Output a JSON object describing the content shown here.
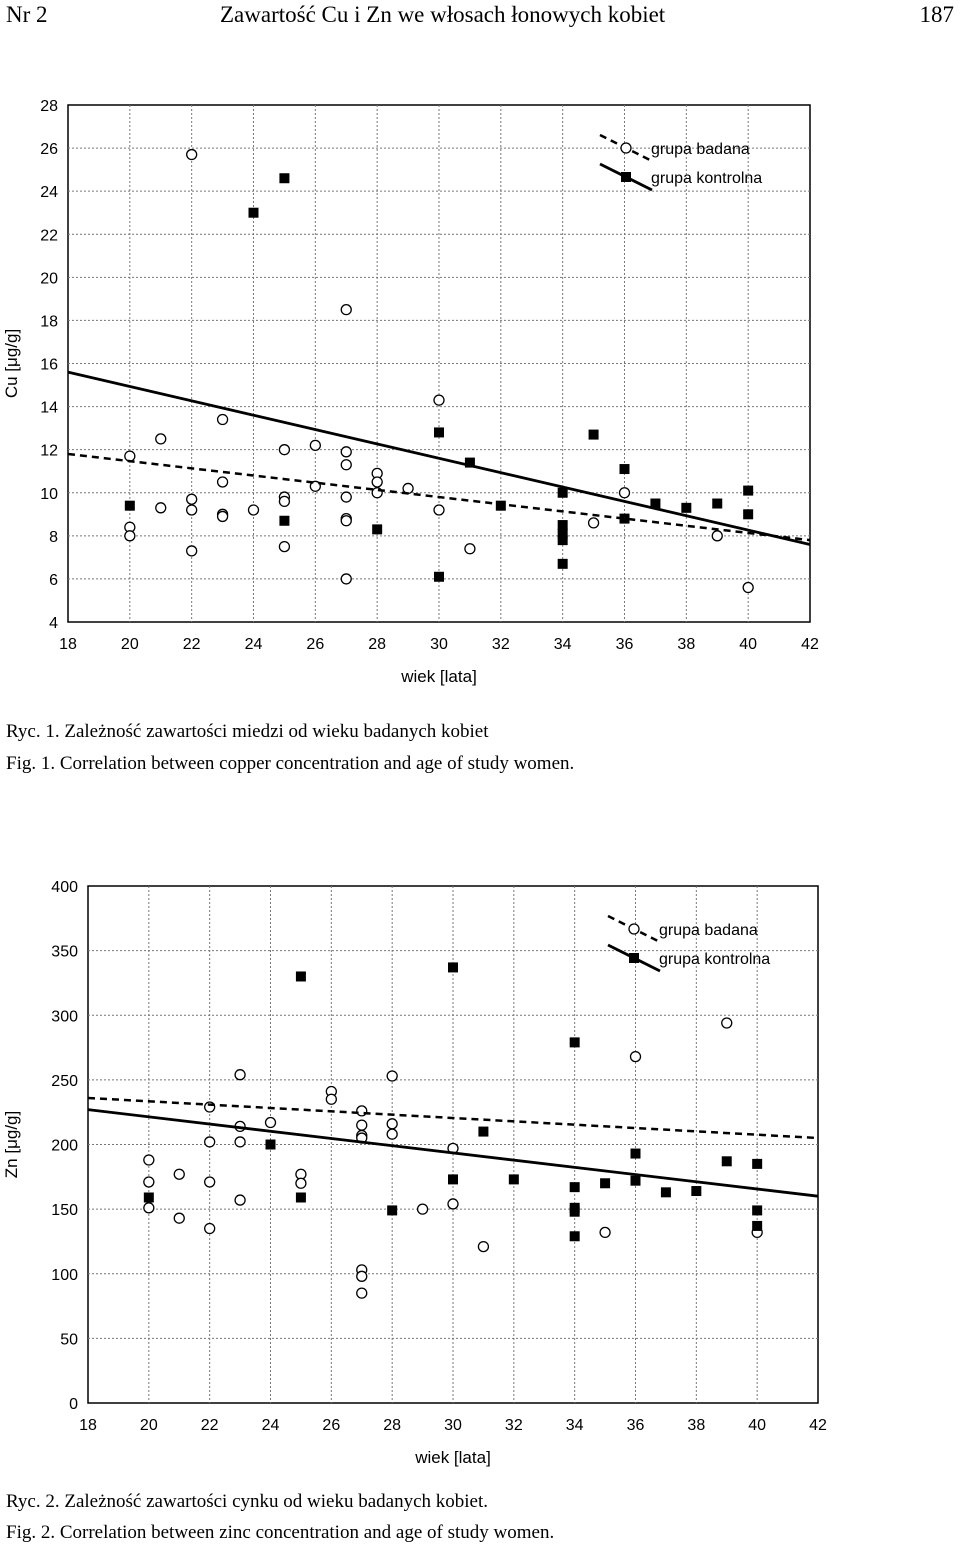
{
  "header": {
    "left": "Nr 2",
    "center": "Zawartość Cu i Zn we włosach łonowych kobiet",
    "right": "187"
  },
  "captions": {
    "fig1_pl": "Ryc. 1. Zależność zawartości miedzi od wieku badanych kobiet",
    "fig1_en": "Fig. 1. Correlation between copper concentration and age of study women.",
    "fig2_pl": "Ryc. 2. Zależność zawartości cynku od wieku badanych kobiet.",
    "fig2_en": "Fig. 2. Correlation between zinc concentration and age of study women."
  },
  "chart_data": [
    {
      "type": "scatter",
      "xlabel": "wiek [lata]",
      "ylabel": "Cu [μg/g]",
      "xlim": [
        18,
        42
      ],
      "ylim": [
        4,
        28
      ],
      "xticks": [
        18,
        20,
        22,
        24,
        26,
        28,
        30,
        32,
        34,
        36,
        38,
        40,
        42
      ],
      "yticks": [
        4,
        6,
        8,
        10,
        12,
        14,
        16,
        18,
        20,
        22,
        24,
        26,
        28
      ],
      "grid": true,
      "legend_position": "top-right",
      "series": [
        {
          "name": "grupa badana",
          "marker": "open-circle",
          "line_style": "dashed",
          "trend": [
            [
              18,
              11.8
            ],
            [
              42,
              7.8
            ]
          ],
          "points": [
            [
              20,
              11.7
            ],
            [
              20,
              8.4
            ],
            [
              20,
              8.0
            ],
            [
              21,
              12.5
            ],
            [
              21,
              9.3
            ],
            [
              22,
              25.7
            ],
            [
              22,
              9.7
            ],
            [
              22,
              9.2
            ],
            [
              22,
              7.3
            ],
            [
              23,
              13.4
            ],
            [
              23,
              10.5
            ],
            [
              23,
              9.0
            ],
            [
              23,
              8.9
            ],
            [
              24,
              9.2
            ],
            [
              25,
              12.0
            ],
            [
              25,
              9.8
            ],
            [
              25,
              9.6
            ],
            [
              25,
              7.5
            ],
            [
              26,
              12.2
            ],
            [
              26,
              10.3
            ],
            [
              27,
              18.5
            ],
            [
              27,
              11.9
            ],
            [
              27,
              11.3
            ],
            [
              27,
              9.8
            ],
            [
              27,
              8.8
            ],
            [
              27,
              8.7
            ],
            [
              27,
              6.0
            ],
            [
              28,
              10.9
            ],
            [
              28,
              10.5
            ],
            [
              28,
              10.0
            ],
            [
              29,
              10.2
            ],
            [
              30,
              14.3
            ],
            [
              30,
              9.2
            ],
            [
              31,
              7.4
            ],
            [
              35,
              8.6
            ],
            [
              36,
              10.0
            ],
            [
              39,
              8.0
            ],
            [
              40,
              5.6
            ]
          ]
        },
        {
          "name": "grupa kontrolna",
          "marker": "filled-square",
          "line_style": "solid",
          "trend": [
            [
              18,
              15.6
            ],
            [
              42,
              7.6
            ]
          ],
          "points": [
            [
              20,
              9.4
            ],
            [
              24,
              23.0
            ],
            [
              25,
              24.6
            ],
            [
              25,
              8.7
            ],
            [
              28,
              8.3
            ],
            [
              30,
              12.8
            ],
            [
              30,
              6.1
            ],
            [
              31,
              11.4
            ],
            [
              32,
              9.4
            ],
            [
              34,
              10.0
            ],
            [
              34,
              8.5
            ],
            [
              34,
              8.1
            ],
            [
              34,
              7.8
            ],
            [
              34,
              6.7
            ],
            [
              35,
              12.7
            ],
            [
              36,
              11.1
            ],
            [
              36,
              8.8
            ],
            [
              37,
              9.5
            ],
            [
              38,
              9.3
            ],
            [
              39,
              9.5
            ],
            [
              40,
              10.1
            ],
            [
              40,
              9.0
            ]
          ]
        }
      ]
    },
    {
      "type": "scatter",
      "xlabel": "wiek [lata]",
      "ylabel": "Zn [μg/g]",
      "xlim": [
        18,
        42
      ],
      "ylim": [
        0,
        400
      ],
      "xticks": [
        18,
        20,
        22,
        24,
        26,
        28,
        30,
        32,
        34,
        36,
        38,
        40,
        42
      ],
      "yticks": [
        0,
        50,
        100,
        150,
        200,
        250,
        300,
        350,
        400
      ],
      "grid": true,
      "legend_position": "top-right",
      "series": [
        {
          "name": "grupa badana",
          "marker": "open-circle",
          "line_style": "dashed",
          "trend": [
            [
              18,
              236
            ],
            [
              42,
              205
            ]
          ],
          "points": [
            [
              20,
              188
            ],
            [
              20,
              171
            ],
            [
              20,
              151
            ],
            [
              21,
              177
            ],
            [
              21,
              143
            ],
            [
              22,
              229
            ],
            [
              22,
              202
            ],
            [
              22,
              171
            ],
            [
              22,
              135
            ],
            [
              23,
              254
            ],
            [
              23,
              214
            ],
            [
              23,
              202
            ],
            [
              23,
              157
            ],
            [
              24,
              217
            ],
            [
              25,
              177
            ],
            [
              25,
              170
            ],
            [
              26,
              241
            ],
            [
              26,
              235
            ],
            [
              27,
              226
            ],
            [
              27,
              215
            ],
            [
              27,
              207
            ],
            [
              27,
              205
            ],
            [
              27,
              103
            ],
            [
              27,
              98
            ],
            [
              27,
              85
            ],
            [
              28,
              253
            ],
            [
              28,
              216
            ],
            [
              28,
              208
            ],
            [
              29,
              150
            ],
            [
              30,
              197
            ],
            [
              30,
              154
            ],
            [
              31,
              121
            ],
            [
              35,
              132
            ],
            [
              36,
              268
            ],
            [
              39,
              294
            ],
            [
              40,
              132
            ]
          ]
        },
        {
          "name": "grupa kontrolna",
          "marker": "filled-square",
          "line_style": "solid",
          "trend": [
            [
              18,
              227
            ],
            [
              42,
              160
            ]
          ],
          "points": [
            [
              20,
              159
            ],
            [
              24,
              200
            ],
            [
              25,
              330
            ],
            [
              25,
              159
            ],
            [
              28,
              149
            ],
            [
              30,
              337
            ],
            [
              30,
              173
            ],
            [
              31,
              210
            ],
            [
              32,
              173
            ],
            [
              34,
              279
            ],
            [
              34,
              167
            ],
            [
              34,
              151
            ],
            [
              34,
              148
            ],
            [
              34,
              129
            ],
            [
              35,
              170
            ],
            [
              36,
              193
            ],
            [
              36,
              172
            ],
            [
              37,
              163
            ],
            [
              38,
              164
            ],
            [
              39,
              187
            ],
            [
              40,
              185
            ],
            [
              40,
              149
            ],
            [
              40,
              137
            ]
          ]
        }
      ]
    }
  ]
}
